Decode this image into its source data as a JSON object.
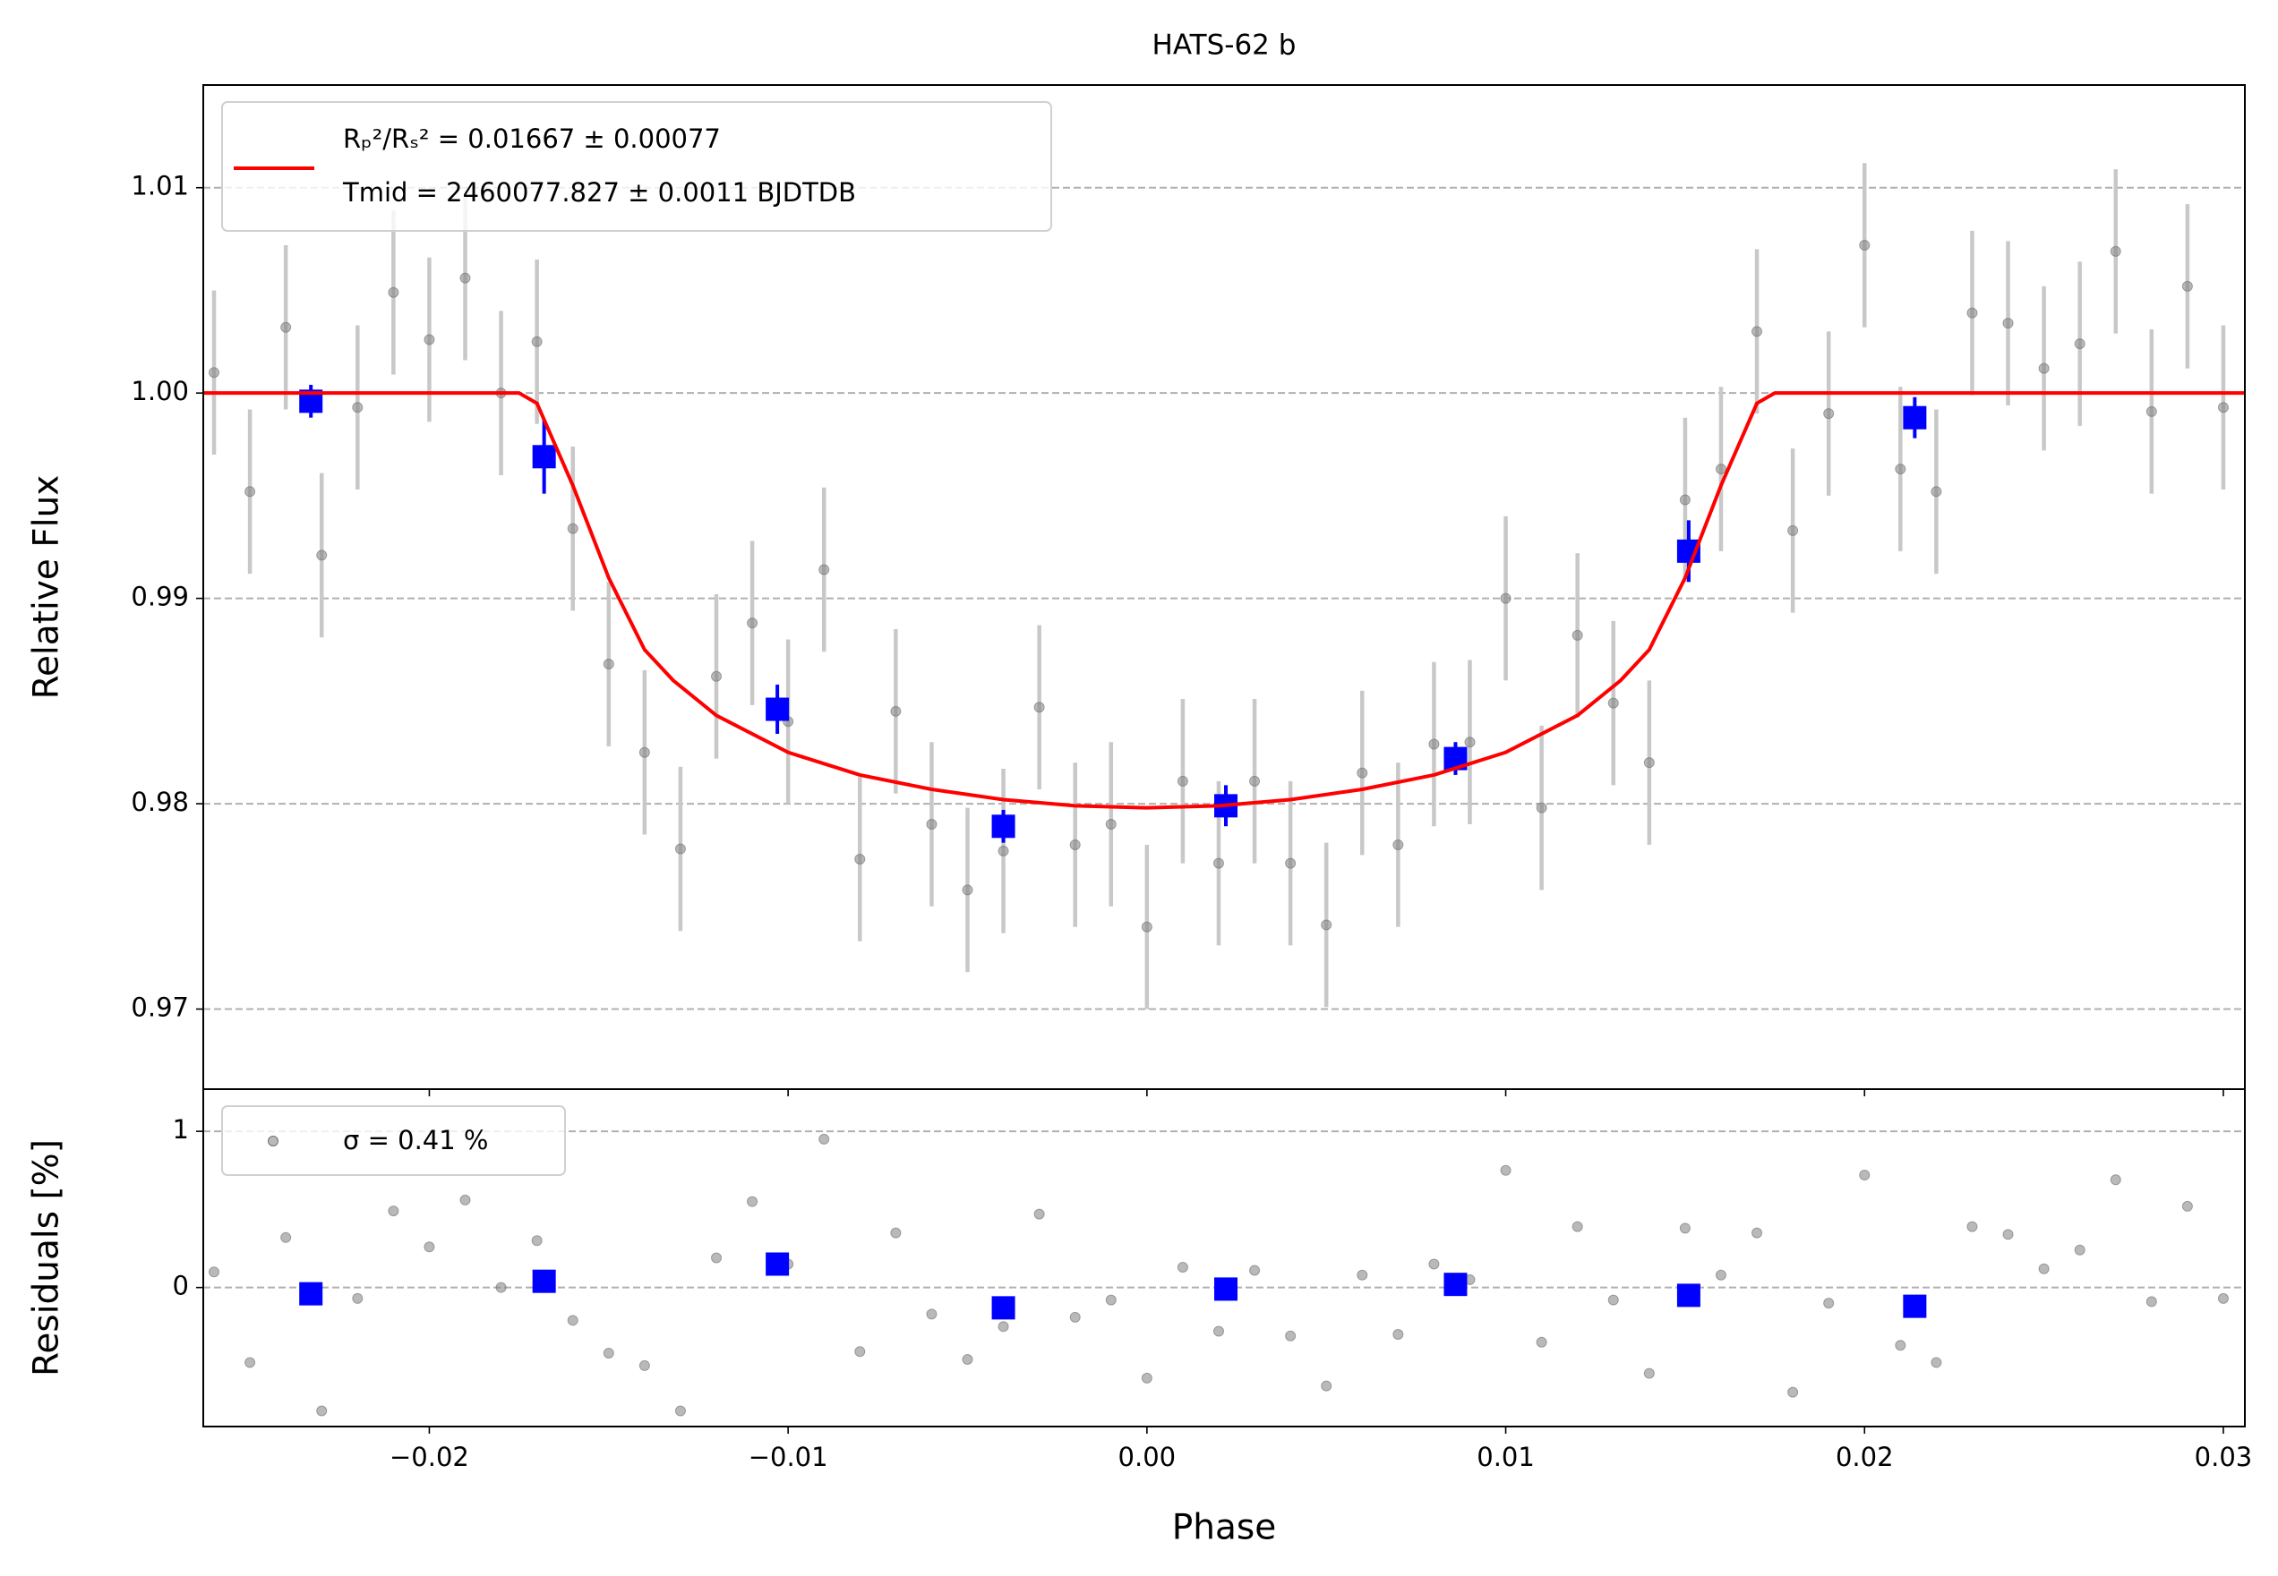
{
  "chart_data": [
    {
      "type": "scatter",
      "title": "HATS-62 b",
      "ylabel": "Relative Flux",
      "xlim": [
        -0.0263,
        0.0306
      ],
      "ylim": [
        0.9661,
        1.015
      ],
      "yticks": [
        0.97,
        0.98,
        0.99,
        {
          "value": 1,
          "label": "1.00"
        },
        1.01
      ],
      "grid": true,
      "legend": "upper left",
      "series": [
        {
          "kind": "points",
          "color": "#808080",
          "yerr": 0.004,
          "x": [
            -0.026,
            -0.025,
            -0.024,
            -0.023,
            -0.022,
            -0.021,
            -0.02,
            -0.019,
            -0.018,
            -0.017,
            -0.016,
            -0.015,
            -0.014,
            -0.013,
            -0.012,
            -0.011,
            -0.01,
            -0.009,
            -0.008,
            -0.007,
            -0.006,
            -0.005,
            -0.004,
            -0.003,
            -0.002,
            -0.001,
            0,
            0.001,
            0.002,
            0.003,
            0.004,
            0.005,
            0.006,
            0.007,
            0.008,
            0.009,
            0.01,
            0.011,
            0.012,
            0.013,
            0.014,
            0.015,
            0.016,
            0.017,
            0.018,
            0.019,
            0.02,
            0.021,
            0.022,
            0.023,
            0.024,
            0.025,
            0.026,
            0.027,
            0.028,
            0.029,
            0.03
          ],
          "values": [
            1.001,
            0.9952,
            1.0032,
            0.9921,
            0.9993,
            1.0049,
            1.0026,
            1.0056,
            1.0,
            1.0025,
            0.9934,
            0.9868,
            0.9825,
            0.9778,
            0.9862,
            0.9888,
            0.984,
            0.9914,
            0.9773,
            0.9845,
            0.979,
            0.9758,
            0.9777,
            0.9847,
            0.978,
            0.979,
            0.974,
            0.9811,
            0.9771,
            0.9811,
            0.9771,
            0.9741,
            0.9815,
            0.978,
            0.9829,
            0.983,
            0.99,
            0.9798,
            0.9882,
            0.9849,
            0.982,
            0.9948,
            0.9963,
            1.003,
            0.9933,
            0.999,
            1.0072,
            0.9963,
            0.9952,
            1.0039,
            1.0034,
            1.0012,
            1.0024,
            1.0069,
            0.9991,
            1.0052,
            0.9993
          ]
        },
        {
          "kind": "binned",
          "color": "#0000ff",
          "x": [
            -0.0233,
            -0.0168,
            -0.0103,
            -0.004,
            0.0022,
            0.0086,
            0.0151,
            0.0214
          ],
          "values": [
            0.9996,
            0.9969,
            0.9846,
            0.9789,
            0.9799,
            0.9822,
            0.9923,
            0.9988
          ],
          "yerr": [
            0.0008,
            0.0018,
            0.0012,
            0.0008,
            0.001,
            0.0008,
            0.0015,
            0.001
          ]
        },
        {
          "kind": "line",
          "color": "#ff0000",
          "label": [
            "Rₚ²/Rₛ² = 0.01667 ± 0.00077",
            "Tmid = 2460077.827 ± 0.0011 BJDTDB"
          ],
          "x": [
            -0.0263,
            -0.0175,
            -0.017,
            -0.016,
            -0.015,
            -0.014,
            -0.0132,
            -0.012,
            -0.01,
            -0.008,
            -0.006,
            -0.004,
            -0.002,
            0,
            0.002,
            0.004,
            0.006,
            0.008,
            0.01,
            0.012,
            0.0132,
            0.014,
            0.015,
            0.016,
            0.017,
            0.0175,
            0.0306
          ],
          "values": [
            1.0,
            1.0,
            0.9995,
            0.9955,
            0.991,
            0.9875,
            0.986,
            0.9843,
            0.9825,
            0.9814,
            0.9807,
            0.9802,
            0.9799,
            0.9798,
            0.9799,
            0.9802,
            0.9807,
            0.9814,
            0.9825,
            0.9843,
            0.986,
            0.9875,
            0.991,
            0.9955,
            0.9995,
            1.0,
            1.0
          ]
        }
      ]
    },
    {
      "type": "scatter",
      "ylabel": "Residuals [%]",
      "xlabel": "Phase",
      "xlim": [
        -0.0263,
        0.0306
      ],
      "ylim": [
        -0.89,
        1.27
      ],
      "xticks": [
        {
          "value": -0.02,
          "label": "−0.02"
        },
        {
          "value": -0.01,
          "label": "−0.01"
        },
        {
          "value": 0,
          "label": "0.00"
        },
        0.01,
        0.02,
        0.03
      ],
      "yticks": [
        0,
        1
      ],
      "grid": true,
      "legend": "upper left",
      "series": [
        {
          "kind": "points",
          "color": "#808080",
          "label": "σ = 0.41 %",
          "x": [
            -0.026,
            -0.025,
            -0.024,
            -0.023,
            -0.022,
            -0.021,
            -0.02,
            -0.019,
            -0.018,
            -0.017,
            -0.016,
            -0.015,
            -0.014,
            -0.013,
            -0.012,
            -0.011,
            -0.01,
            -0.009,
            -0.008,
            -0.007,
            -0.006,
            -0.005,
            -0.004,
            -0.003,
            -0.002,
            -0.001,
            0,
            0.001,
            0.002,
            0.003,
            0.004,
            0.005,
            0.006,
            0.007,
            0.008,
            0.009,
            0.01,
            0.011,
            0.012,
            0.013,
            0.014,
            0.015,
            0.016,
            0.017,
            0.018,
            0.019,
            0.02,
            0.021,
            0.022,
            0.023,
            0.024,
            0.025,
            0.026,
            0.027,
            0.028,
            0.029,
            0.03
          ],
          "values": [
            0.1,
            -0.48,
            0.32,
            -0.79,
            -0.07,
            0.49,
            0.26,
            0.56,
            0,
            0.3,
            -0.21,
            -0.42,
            -0.5,
            -0.79,
            0.19,
            0.55,
            0.15,
            0.95,
            -0.41,
            0.35,
            -0.17,
            -0.46,
            -0.25,
            0.47,
            -0.19,
            -0.08,
            -0.58,
            0.13,
            -0.28,
            0.11,
            -0.31,
            -0.63,
            0.08,
            -0.3,
            0.15,
            0.05,
            0.75,
            -0.35,
            0.39,
            -0.08,
            -0.55,
            0.38,
            0.08,
            0.35,
            -0.67,
            -0.1,
            0.72,
            -0.37,
            -0.48,
            0.39,
            0.34,
            0.12,
            0.24,
            0.69,
            -0.09,
            0.52,
            -0.07
          ]
        },
        {
          "kind": "binned",
          "color": "#0000ff",
          "x": [
            -0.0233,
            -0.0168,
            -0.0103,
            -0.004,
            0.0022,
            0.0086,
            0.0151,
            0.0214
          ],
          "values": [
            -0.04,
            0.04,
            0.15,
            -0.13,
            -0.01,
            0.02,
            -0.05,
            -0.12
          ]
        }
      ]
    }
  ]
}
